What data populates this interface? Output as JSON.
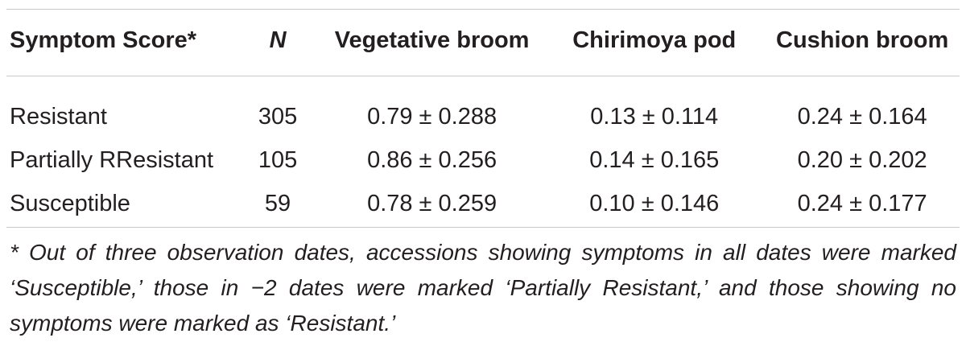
{
  "table": {
    "headers": [
      "Symptom Score*",
      "N",
      "Vegetative broom",
      "Chirimoya pod",
      "Cushion broom"
    ],
    "rows": [
      [
        "Resistant",
        "305",
        "0.79 ± 0.288",
        "0.13 ± 0.114",
        "0.24 ± 0.164"
      ],
      [
        "Partially RResistant",
        "105",
        "0.86 ± 0.256",
        "0.14 ± 0.165",
        "0.20 ± 0.202"
      ],
      [
        "Susceptible",
        "59",
        "0.78 ± 0.259",
        "0.10 ± 0.146",
        "0.24 ± 0.177"
      ]
    ]
  },
  "footnote": "* Out of three observation dates, accessions showing symptoms in all dates were marked ‘Susceptible,’ those in −2 dates were marked ‘Partially Resistant,’ and those showing no symptoms were marked as ‘Resistant.’"
}
